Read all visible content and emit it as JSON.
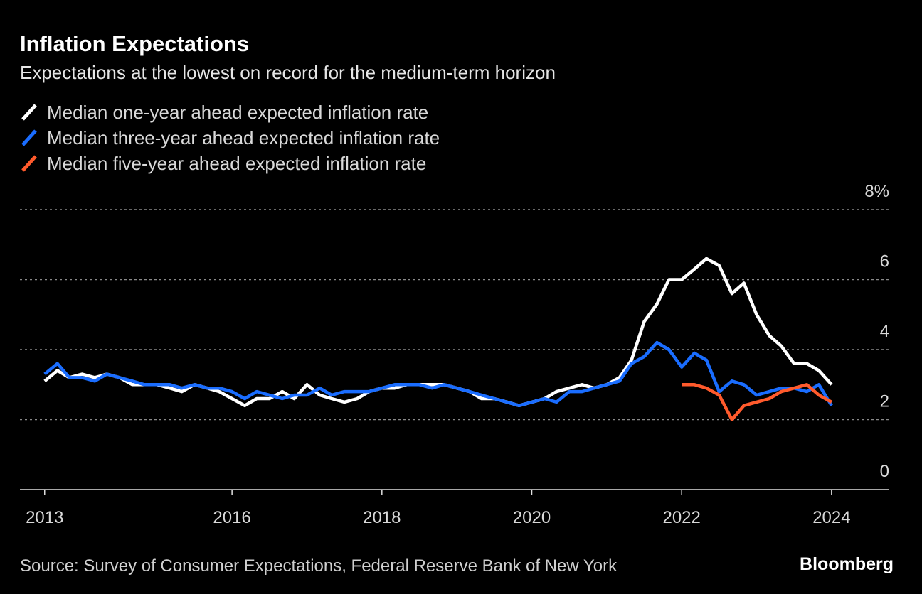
{
  "chart_data": {
    "type": "line",
    "title": "Inflation Expectations",
    "subtitle": "Expectations at the lowest on record for the medium-term horizon",
    "source": "Source: Survey of Consumer Expectations, Federal Reserve Bank of New York",
    "brand": "Bloomberg",
    "x": [
      2013.5,
      2013.67,
      2013.83,
      2014,
      2014.17,
      2014.33,
      2014.5,
      2014.67,
      2014.83,
      2015,
      2015.17,
      2015.33,
      2015.5,
      2015.67,
      2015.83,
      2016,
      2016.17,
      2016.33,
      2016.5,
      2016.67,
      2016.83,
      2017,
      2017.17,
      2017.33,
      2017.5,
      2017.67,
      2017.83,
      2018,
      2018.17,
      2018.33,
      2018.5,
      2018.67,
      2018.83,
      2019,
      2019.17,
      2019.33,
      2019.5,
      2019.67,
      2019.83,
      2020,
      2020.17,
      2020.33,
      2020.5,
      2020.67,
      2020.83,
      2021,
      2021.17,
      2021.33,
      2021.5,
      2021.67,
      2021.83,
      2022,
      2022.17,
      2022.33,
      2022.5,
      2022.67,
      2022.83,
      2023,
      2023.17,
      2023.33,
      2023.5,
      2023.67,
      2023.83,
      2024
    ],
    "series": [
      {
        "name": "Median one-year ahead expected inflation rate",
        "color": "#ffffff",
        "values": [
          3.1,
          3.4,
          3.2,
          3.3,
          3.2,
          3.3,
          3.2,
          3.0,
          3.0,
          3.0,
          2.9,
          2.8,
          3.0,
          2.9,
          2.8,
          2.6,
          2.4,
          2.6,
          2.6,
          2.8,
          2.6,
          3.0,
          2.7,
          2.6,
          2.5,
          2.6,
          2.8,
          2.9,
          2.9,
          3.0,
          3.0,
          3.0,
          3.0,
          2.9,
          2.8,
          2.6,
          2.6,
          2.5,
          2.4,
          2.5,
          2.6,
          2.8,
          2.9,
          3.0,
          2.9,
          3.0,
          3.2,
          3.7,
          4.8,
          5.3,
          6.0,
          6.0,
          6.3,
          6.6,
          6.4,
          5.6,
          5.9,
          5.0,
          4.4,
          4.1,
          3.6,
          3.6,
          3.4,
          3.0
        ]
      },
      {
        "name": "Median three-year ahead expected inflation rate",
        "color": "#1a6dff",
        "values": [
          3.3,
          3.6,
          3.2,
          3.2,
          3.1,
          3.3,
          3.2,
          3.1,
          3.0,
          3.0,
          3.0,
          2.9,
          3.0,
          2.9,
          2.9,
          2.8,
          2.6,
          2.8,
          2.7,
          2.6,
          2.7,
          2.7,
          2.9,
          2.7,
          2.8,
          2.8,
          2.8,
          2.9,
          3.0,
          3.0,
          3.0,
          2.9,
          3.0,
          2.9,
          2.8,
          2.7,
          2.6,
          2.5,
          2.4,
          2.5,
          2.6,
          2.5,
          2.8,
          2.8,
          2.9,
          3.0,
          3.1,
          3.6,
          3.8,
          4.2,
          4.0,
          3.5,
          3.9,
          3.7,
          2.8,
          3.1,
          3.0,
          2.7,
          2.8,
          2.9,
          2.9,
          2.8,
          3.0,
          2.4
        ]
      },
      {
        "name": "Median five-year ahead expected inflation rate",
        "color": "#ff5a2c",
        "values": [
          null,
          null,
          null,
          null,
          null,
          null,
          null,
          null,
          null,
          null,
          null,
          null,
          null,
          null,
          null,
          null,
          null,
          null,
          null,
          null,
          null,
          null,
          null,
          null,
          null,
          null,
          null,
          null,
          null,
          null,
          null,
          null,
          null,
          null,
          null,
          null,
          null,
          null,
          null,
          null,
          null,
          null,
          null,
          null,
          null,
          null,
          null,
          null,
          null,
          null,
          null,
          3.0,
          3.0,
          2.9,
          2.7,
          2.0,
          2.4,
          2.5,
          2.6,
          2.8,
          2.9,
          3.0,
          2.7,
          2.5
        ]
      }
    ],
    "xlim": [
      2013.17,
      2024.77
    ],
    "xticks": [
      {
        "value": 2013.5,
        "label": "2013"
      },
      2016,
      2018,
      2020,
      2022,
      2024
    ],
    "ylim": [
      0,
      8
    ],
    "yticks": [
      0,
      2,
      4,
      6,
      {
        "value": 8,
        "label": "8%"
      }
    ],
    "grid": true
  }
}
